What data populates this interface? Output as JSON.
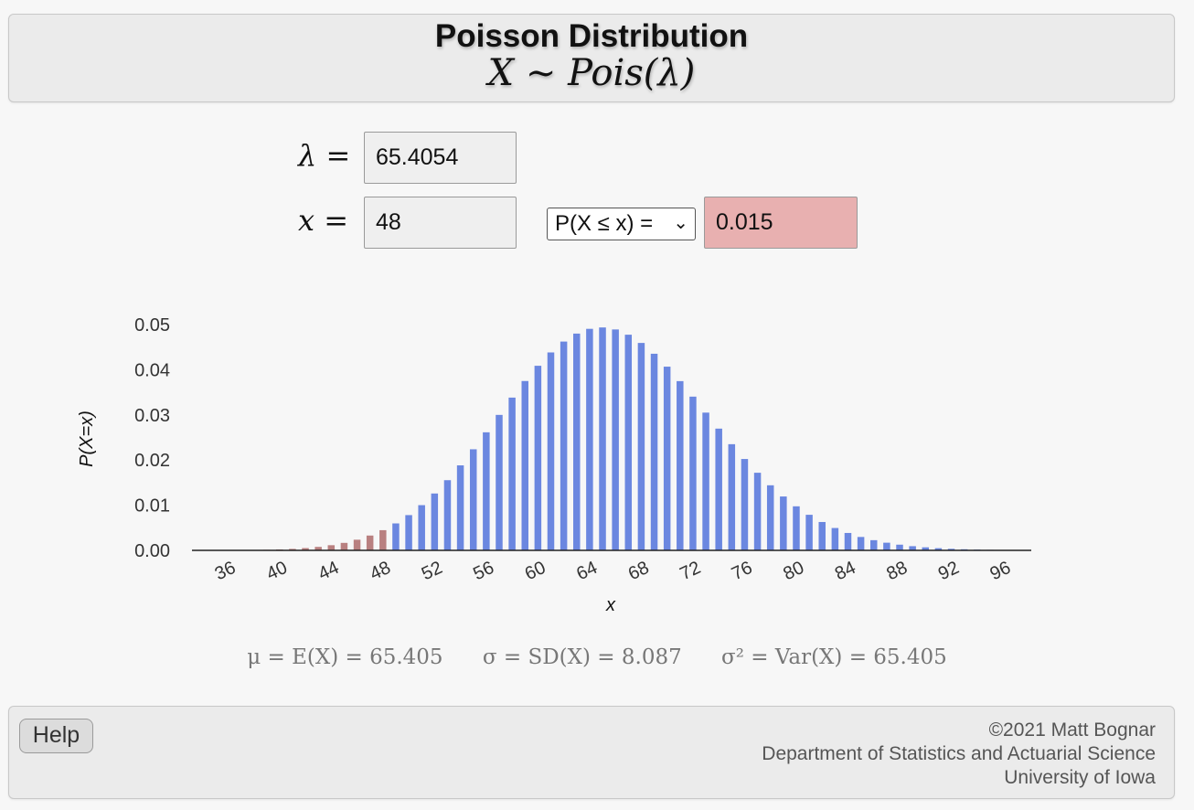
{
  "header": {
    "title": "Poisson Distribution",
    "subtitle": "X ∼ Pois(λ)"
  },
  "inputs": {
    "lambda_label": "λ =",
    "lambda_value": "65.4054",
    "x_label": "x =",
    "x_value": "48",
    "prob_type": "P(X ≤ x) =",
    "result": "0.015"
  },
  "stats": {
    "mean": "μ = E(X) = 65.405",
    "sd": "σ = SD(X) = 8.087",
    "var": "σ² = Var(X) = 65.405"
  },
  "footer": {
    "help_label": "Help",
    "credit1": "©2021 Matt Bognar",
    "credit2": "Department of Statistics and Actuarial Science",
    "credit3": "University of Iowa"
  },
  "colors": {
    "shaded": "#b98080",
    "unshaded": "#6b87e0",
    "result_bg": "#e8b0b0"
  },
  "chart_data": {
    "type": "bar",
    "xlabel": "x",
    "ylabel": "P(X=x)",
    "x_ticks": [
      36,
      40,
      44,
      48,
      52,
      56,
      60,
      64,
      68,
      72,
      76,
      80,
      84,
      88,
      92,
      96
    ],
    "y_ticks": [
      "0.00",
      "0.01",
      "0.02",
      "0.03",
      "0.04",
      "0.05"
    ],
    "xlim": [
      33,
      97
    ],
    "ylim": [
      0,
      0.05
    ],
    "shaded_upto": 48,
    "lambda": 65.4054
  }
}
